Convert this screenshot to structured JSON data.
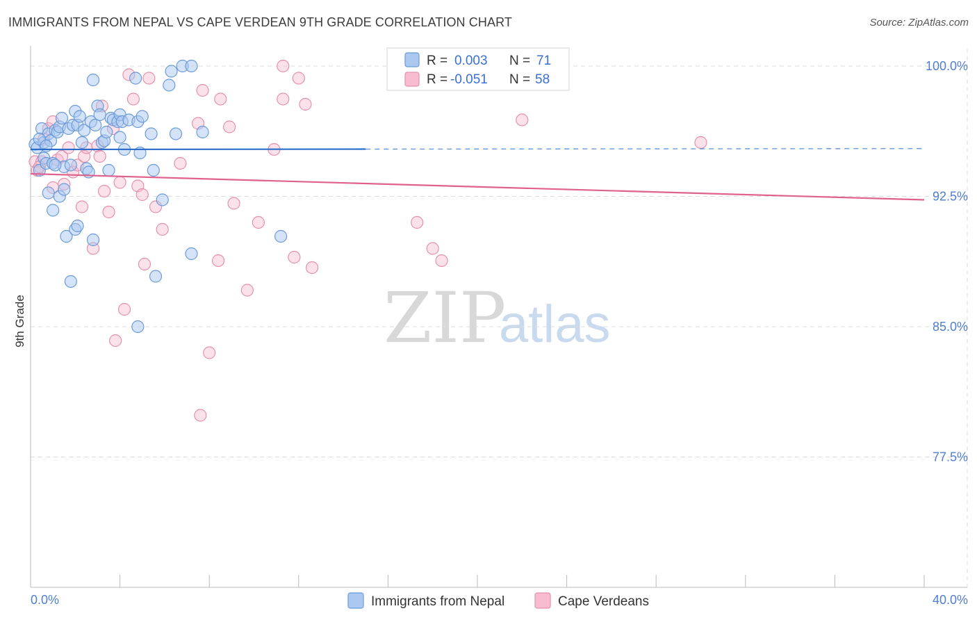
{
  "header": {
    "title": "IMMIGRANTS FROM NEPAL VS CAPE VERDEAN 9TH GRADE CORRELATION CHART",
    "source": "Source: ZipAtlas.com"
  },
  "watermark": {
    "zip": "ZIP",
    "atlas": "atlas"
  },
  "legend": {
    "rows": [
      {
        "r_label": "R =",
        "r_value": "0.003",
        "n_label": "N =",
        "n_value": "71"
      },
      {
        "r_label": "R =",
        "r_value": "-0.051",
        "n_label": "N =",
        "n_value": "58"
      }
    ]
  },
  "bottom_legend": [
    "Immigrants from Nepal",
    "Cape Verdeans"
  ],
  "colors": {
    "nepal_fill": "#aac8f0",
    "nepal_stroke": "#6b9ad8",
    "nepal_line": "#2a6cc8",
    "cape_fill": "#f7bcd0",
    "cape_stroke": "#e590ad",
    "cape_line": "#e0608e",
    "grid": "#dddddd",
    "tick_label": "#4f7fd0"
  },
  "chart_data": {
    "type": "scatter",
    "title": "IMMIGRANTS FROM NEPAL VS CAPE VERDEAN 9TH GRADE CORRELATION CHART",
    "xlabel": "",
    "ylabel": "9th Grade",
    "xlim": [
      0,
      40
    ],
    "ylim": [
      70.0,
      101.0
    ],
    "x_tick_labels": [
      "0.0%",
      "40.0%"
    ],
    "y_ticks": [
      100.0,
      92.5,
      85.0,
      77.5
    ],
    "y_tick_labels": [
      "100.0%",
      "92.5%",
      "85.0%",
      "77.5%"
    ],
    "series": [
      {
        "name": "Immigrants from Nepal",
        "r": 0.003,
        "n": 71,
        "trend": {
          "x": [
            0,
            40
          ],
          "y": [
            95.2,
            95.25
          ],
          "solid_until_x": 15.0
        },
        "points": [
          [
            0.2,
            95.5
          ],
          [
            0.3,
            95.3
          ],
          [
            0.4,
            94.0
          ],
          [
            0.5,
            96.4
          ],
          [
            0.6,
            95.6
          ],
          [
            0.6,
            94.7
          ],
          [
            0.7,
            94.4
          ],
          [
            0.8,
            96.1
          ],
          [
            0.9,
            95.7
          ],
          [
            1.0,
            94.4
          ],
          [
            1.1,
            96.3
          ],
          [
            1.2,
            96.2
          ],
          [
            1.3,
            96.5
          ],
          [
            1.4,
            97.0
          ],
          [
            1.5,
            94.2
          ],
          [
            1.7,
            96.4
          ],
          [
            1.8,
            94.3
          ],
          [
            1.9,
            96.6
          ],
          [
            2.0,
            97.4
          ],
          [
            2.1,
            96.6
          ],
          [
            2.2,
            97.1
          ],
          [
            2.3,
            95.6
          ],
          [
            2.4,
            96.3
          ],
          [
            2.5,
            94.1
          ],
          [
            2.6,
            93.9
          ],
          [
            2.7,
            96.8
          ],
          [
            2.8,
            99.2
          ],
          [
            2.9,
            96.6
          ],
          [
            3.0,
            97.7
          ],
          [
            3.1,
            97.2
          ],
          [
            3.2,
            95.6
          ],
          [
            3.3,
            95.7
          ],
          [
            3.4,
            96.2
          ],
          [
            3.5,
            94.0
          ],
          [
            3.6,
            97.0
          ],
          [
            3.7,
            96.9
          ],
          [
            3.9,
            96.8
          ],
          [
            4.0,
            97.2
          ],
          [
            4.1,
            96.8
          ],
          [
            0.8,
            92.7
          ],
          [
            1.0,
            91.7
          ],
          [
            1.3,
            92.5
          ],
          [
            1.5,
            92.9
          ],
          [
            1.6,
            90.2
          ],
          [
            1.8,
            87.6
          ],
          [
            2.0,
            90.6
          ],
          [
            2.1,
            90.8
          ],
          [
            2.8,
            90.0
          ],
          [
            4.0,
            95.9
          ],
          [
            4.2,
            95.2
          ],
          [
            4.4,
            96.9
          ],
          [
            4.7,
            99.3
          ],
          [
            4.8,
            96.8
          ],
          [
            4.9,
            95.0
          ],
          [
            5.0,
            97.1
          ],
          [
            5.4,
            96.1
          ],
          [
            5.5,
            94.0
          ],
          [
            5.9,
            92.3
          ],
          [
            6.3,
            99.7
          ],
          [
            6.5,
            96.1
          ],
          [
            6.8,
            100.0
          ],
          [
            7.2,
            100.0
          ],
          [
            6.2,
            98.9
          ],
          [
            7.7,
            96.2
          ],
          [
            5.6,
            87.9
          ],
          [
            7.2,
            89.2
          ],
          [
            11.2,
            90.2
          ],
          [
            4.8,
            85.0
          ],
          [
            0.4,
            95.8
          ],
          [
            0.7,
            95.4
          ],
          [
            1.1,
            94.3
          ]
        ]
      },
      {
        "name": "Cape Verdeans",
        "r": -0.051,
        "n": 58,
        "trend": {
          "x": [
            0,
            40
          ],
          "y": [
            93.8,
            92.3
          ]
        },
        "points": [
          [
            0.2,
            94.5
          ],
          [
            0.3,
            94.0
          ],
          [
            0.5,
            94.5
          ],
          [
            0.6,
            95.8
          ],
          [
            0.8,
            96.4
          ],
          [
            1.0,
            96.8
          ],
          [
            1.2,
            94.6
          ],
          [
            1.4,
            94.8
          ],
          [
            1.5,
            93.2
          ],
          [
            1.7,
            95.3
          ],
          [
            1.9,
            93.9
          ],
          [
            2.1,
            94.3
          ],
          [
            2.3,
            91.9
          ],
          [
            2.4,
            94.8
          ],
          [
            2.5,
            95.3
          ],
          [
            2.8,
            89.5
          ],
          [
            3.0,
            95.4
          ],
          [
            3.1,
            94.8
          ],
          [
            3.2,
            97.7
          ],
          [
            3.3,
            92.8
          ],
          [
            3.5,
            91.6
          ],
          [
            3.7,
            96.4
          ],
          [
            4.0,
            93.3
          ],
          [
            4.4,
            99.5
          ],
          [
            4.6,
            98.1
          ],
          [
            4.8,
            93.1
          ],
          [
            5.0,
            92.6
          ],
          [
            5.3,
            99.3
          ],
          [
            5.6,
            91.9
          ],
          [
            5.9,
            90.6
          ],
          [
            6.7,
            94.4
          ],
          [
            7.5,
            96.7
          ],
          [
            7.7,
            98.6
          ],
          [
            8.5,
            98.1
          ],
          [
            8.9,
            96.5
          ],
          [
            9.1,
            92.1
          ],
          [
            10.2,
            91.0
          ],
          [
            10.9,
            95.2
          ],
          [
            11.3,
            100.0
          ],
          [
            11.3,
            98.1
          ],
          [
            12.0,
            99.3
          ],
          [
            12.3,
            97.8
          ],
          [
            11.8,
            89.0
          ],
          [
            12.6,
            88.4
          ],
          [
            17.3,
            91.0
          ],
          [
            18.0,
            89.5
          ],
          [
            18.4,
            88.8
          ],
          [
            22.0,
            96.9
          ],
          [
            30.0,
            95.6
          ],
          [
            4.2,
            86.0
          ],
          [
            3.8,
            84.2
          ],
          [
            5.1,
            88.6
          ],
          [
            8.4,
            88.8
          ],
          [
            9.7,
            87.1
          ],
          [
            8.0,
            83.5
          ],
          [
            7.6,
            79.9
          ],
          [
            1.0,
            93.0
          ],
          [
            0.4,
            94.2
          ]
        ]
      }
    ]
  }
}
